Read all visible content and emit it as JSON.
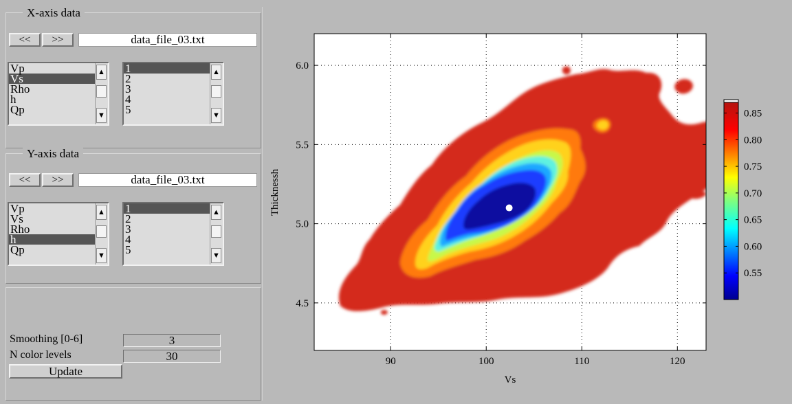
{
  "x_axis_panel": {
    "title": "X-axis data",
    "prev_label": "<<",
    "next_label": ">>",
    "file": "data_file_03.txt",
    "variables": [
      "Vp",
      "Vs",
      "Rho",
      "h",
      "Qp"
    ],
    "selected_variable": "Vs",
    "indices": [
      "1",
      "2",
      "3",
      "4",
      "5"
    ],
    "selected_index": "1"
  },
  "y_axis_panel": {
    "title": "Y-axis data",
    "prev_label": "<<",
    "next_label": ">>",
    "file": "data_file_03.txt",
    "variables": [
      "Vp",
      "Vs",
      "Rho",
      "h",
      "Qp"
    ],
    "selected_variable": "h",
    "indices": [
      "1",
      "2",
      "3",
      "4",
      "5"
    ],
    "selected_index": "1"
  },
  "controls": {
    "smoothing_label": "Smoothing [0-6]",
    "smoothing_value": "3",
    "color_levels_label": "N color levels",
    "color_levels_value": "30",
    "update_label": "Update"
  },
  "chart_data": {
    "type": "contour",
    "xlabel": "Vs",
    "ylabel": "Thicknessh",
    "xlim": [
      82,
      123
    ],
    "ylim": [
      4.2,
      6.2
    ],
    "xticks": [
      "90",
      "100",
      "110",
      "120"
    ],
    "yticks": [
      "4.5",
      "5.0",
      "5.5",
      "6.0"
    ],
    "grid": true,
    "colorbar": {
      "ticks": [
        "0.55",
        "0.60",
        "0.65",
        "0.70",
        "0.75",
        "0.80",
        "0.85"
      ],
      "range": [
        0.5,
        0.87
      ],
      "colormap": "jet"
    },
    "minimum_marker": {
      "x": 102.4,
      "y": 5.1
    },
    "levels": [
      {
        "value": 0.85,
        "color": "#d42a1e"
      },
      {
        "value": 0.8,
        "color": "#ff7a10"
      },
      {
        "value": 0.75,
        "color": "#ffd21a"
      },
      {
        "value": 0.7,
        "color": "#c8f84a"
      },
      {
        "value": 0.65,
        "color": "#5ef2e0"
      },
      {
        "value": 0.6,
        "color": "#1aa8ff"
      },
      {
        "value": 0.55,
        "color": "#1f3cff"
      },
      {
        "value": 0.52,
        "color": "#0a0aa0"
      }
    ]
  }
}
